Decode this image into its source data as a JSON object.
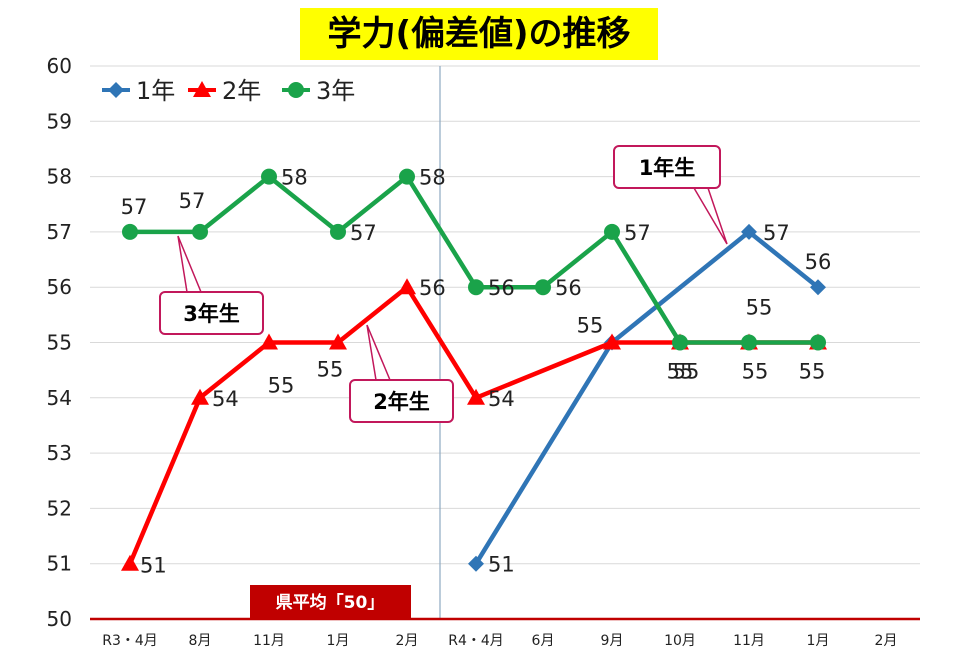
{
  "chart_data": {
    "type": "line",
    "title": "学力(偏差値)の推移",
    "categories": [
      "R3・4月",
      "8月",
      "11月",
      "1月",
      "2月",
      "R4・4月",
      "6月",
      "9月",
      "10月",
      "11月",
      "1月",
      "2月"
    ],
    "ylim": [
      50,
      60
    ],
    "yticks": [
      "50",
      "51",
      "52",
      "53",
      "54",
      "55",
      "56",
      "57",
      "58",
      "59",
      "60"
    ],
    "grid": true,
    "legend_position": "top-left",
    "series": [
      {
        "name": "1年",
        "color": "#2f75b6",
        "marker": "diamond",
        "values": [
          null,
          null,
          null,
          null,
          null,
          51,
          null,
          55,
          null,
          57,
          56,
          null
        ],
        "labels": [
          null,
          null,
          null,
          null,
          null,
          "51",
          null,
          null,
          null,
          "57",
          "56",
          null
        ]
      },
      {
        "name": "2年",
        "color": "#ff0000",
        "marker": "triangle",
        "values": [
          51,
          54,
          55,
          55,
          56,
          54,
          null,
          55,
          55,
          55,
          55,
          null
        ],
        "labels": [
          "51",
          "54",
          "55",
          "55",
          "56",
          "54",
          null,
          "55",
          "55",
          "55",
          "55",
          null
        ]
      },
      {
        "name": "3年",
        "color": "#1aa34a",
        "marker": "circle",
        "values": [
          57,
          57,
          58,
          57,
          58,
          56,
          56,
          57,
          55,
          55,
          55,
          null
        ],
        "labels": [
          "57",
          "57",
          "58",
          "57",
          "58",
          "56",
          "56",
          "57",
          "55",
          "55",
          null,
          null
        ]
      }
    ],
    "callouts": [
      {
        "text": "1年生",
        "series": 0,
        "point": 9
      },
      {
        "text": "2年生",
        "series": 1,
        "point": 3
      },
      {
        "text": "3年生",
        "series": 2,
        "point": 0
      }
    ],
    "reference": {
      "label": "県平均「50」",
      "value": 50,
      "color": "#c00000"
    }
  }
}
